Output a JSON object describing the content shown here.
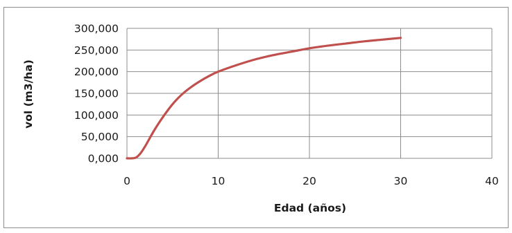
{
  "chart_data": {
    "type": "line",
    "title": "",
    "xlabel": "Edad (años)",
    "ylabel": "vol (m3/ha)",
    "xlim": [
      0,
      40
    ],
    "ylim": [
      0,
      300
    ],
    "xticks": [
      0,
      10,
      20,
      30,
      40
    ],
    "yticks": [
      0,
      50,
      100,
      150,
      200,
      250,
      300
    ],
    "xtick_labels": [
      "0",
      "10",
      "20",
      "30",
      "40"
    ],
    "ytick_labels": [
      "0,000",
      "50,000",
      "100,000",
      "150,000",
      "200,000",
      "250,000",
      "300,000"
    ],
    "grid": "vertical and horizontal major gridlines",
    "legend": "none",
    "series": [
      {
        "color": "#c0504d",
        "x": [
          0,
          0.5,
          1,
          1.5,
          2,
          3,
          4,
          5,
          6,
          7,
          8,
          9,
          10,
          12,
          14,
          16,
          18,
          20,
          22,
          24,
          26,
          28,
          30
        ],
        "y": [
          0,
          0,
          2,
          12,
          28,
          65,
          97,
          125,
          147,
          164,
          178,
          190,
          200,
          215,
          228,
          238,
          246,
          254,
          260,
          265,
          270,
          274,
          278
        ]
      }
    ]
  }
}
